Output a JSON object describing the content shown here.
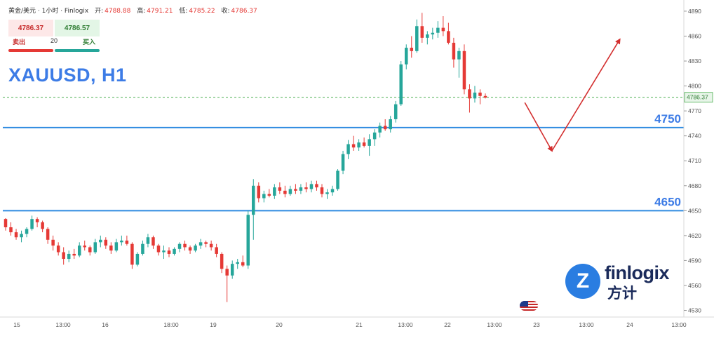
{
  "header": {
    "symbol_desc": "黄金/美元 · 1小时 · Finlogix",
    "open_label": "开:",
    "open": "4788.88",
    "high_label": "高:",
    "high": "4791.21",
    "low_label": "低:",
    "low": "4785.22",
    "close_label": "收:",
    "close": "4786.37"
  },
  "trade": {
    "sell_price": "4786.37",
    "buy_price": "4786.57",
    "sell_label": "卖出",
    "buy_label": "买入",
    "quantity": "20"
  },
  "symbol_title": "XAUUSD, H1",
  "logo": {
    "text": "finlogix",
    "chinese": "方计",
    "mark": "Z"
  },
  "colors": {
    "up": "#26a69a",
    "down": "#e53935",
    "level": "#2f8be0",
    "arrow": "#d32f2f",
    "label": "#3d7ce6"
  },
  "chart_data": {
    "type": "candlestick",
    "y_ticks": [
      4530,
      4560,
      4590,
      4620,
      4650,
      4680,
      4710,
      4740,
      4770,
      4800,
      4830,
      4860,
      4890
    ],
    "x_ticks": [
      "15",
      "13:00",
      "16",
      "18:00",
      "19",
      "20",
      "21",
      "13:00",
      "22",
      "13:00",
      "23",
      "13:00",
      "24",
      "13:00"
    ],
    "last_price": 4786.37,
    "last_price_label": "4786.37",
    "levels": [
      {
        "value": 4750,
        "label": "4750"
      },
      {
        "value": 4650,
        "label": "4650"
      }
    ],
    "projection": [
      {
        "x": 0.735,
        "price": 4780
      },
      {
        "x": 0.773,
        "price": 4722
      },
      {
        "x": 0.868,
        "price": 4856
      }
    ],
    "candles": [
      [
        4640,
        4641,
        4626,
        4630
      ],
      [
        4630,
        4636,
        4620,
        4624
      ],
      [
        4624,
        4628,
        4615,
        4618
      ],
      [
        4618,
        4626,
        4612,
        4622
      ],
      [
        4622,
        4630,
        4618,
        4628
      ],
      [
        4628,
        4644,
        4626,
        4640
      ],
      [
        4640,
        4642,
        4630,
        4636
      ],
      [
        4636,
        4638,
        4624,
        4628
      ],
      [
        4628,
        4630,
        4610,
        4615
      ],
      [
        4615,
        4620,
        4602,
        4608
      ],
      [
        4608,
        4612,
        4596,
        4600
      ],
      [
        4600,
        4606,
        4585,
        4592
      ],
      [
        4592,
        4602,
        4588,
        4598
      ],
      [
        4598,
        4604,
        4592,
        4596
      ],
      [
        4596,
        4612,
        4594,
        4608
      ],
      [
        4608,
        4614,
        4602,
        4606
      ],
      [
        4606,
        4608,
        4596,
        4600
      ],
      [
        4600,
        4616,
        4598,
        4612
      ],
      [
        4612,
        4620,
        4606,
        4615
      ],
      [
        4615,
        4618,
        4604,
        4608
      ],
      [
        4608,
        4612,
        4598,
        4602
      ],
      [
        4602,
        4616,
        4600,
        4612
      ],
      [
        4612,
        4620,
        4608,
        4614
      ],
      [
        4614,
        4620,
        4608,
        4610
      ],
      [
        4610,
        4612,
        4580,
        4585
      ],
      [
        4585,
        4600,
        4583,
        4598
      ],
      [
        4598,
        4614,
        4596,
        4610
      ],
      [
        4610,
        4622,
        4606,
        4618
      ],
      [
        4618,
        4620,
        4604,
        4608
      ],
      [
        4608,
        4610,
        4596,
        4600
      ],
      [
        4600,
        4608,
        4592,
        4602
      ],
      [
        4602,
        4606,
        4594,
        4598
      ],
      [
        4598,
        4606,
        4596,
        4604
      ],
      [
        4604,
        4612,
        4600,
        4610
      ],
      [
        4610,
        4614,
        4602,
        4606
      ],
      [
        4606,
        4608,
        4598,
        4602
      ],
      [
        4602,
        4610,
        4600,
        4608
      ],
      [
        4608,
        4616,
        4604,
        4612
      ],
      [
        4612,
        4614,
        4606,
        4610
      ],
      [
        4610,
        4614,
        4602,
        4606
      ],
      [
        4606,
        4610,
        4594,
        4598
      ],
      [
        4598,
        4600,
        4575,
        4580
      ],
      [
        4580,
        4584,
        4540,
        4572
      ],
      [
        4572,
        4590,
        4568,
        4586
      ],
      [
        4586,
        4592,
        4580,
        4588
      ],
      [
        4588,
        4596,
        4582,
        4584
      ],
      [
        4584,
        4650,
        4580,
        4645
      ],
      [
        4645,
        4688,
        4615,
        4680
      ],
      [
        4680,
        4684,
        4660,
        4665
      ],
      [
        4665,
        4674,
        4660,
        4670
      ],
      [
        4670,
        4676,
        4666,
        4668
      ],
      [
        4668,
        4682,
        4664,
        4678
      ],
      [
        4678,
        4684,
        4670,
        4674
      ],
      [
        4674,
        4680,
        4666,
        4670
      ],
      [
        4670,
        4680,
        4668,
        4676
      ],
      [
        4676,
        4682,
        4670,
        4674
      ],
      [
        4674,
        4682,
        4670,
        4678
      ],
      [
        4678,
        4684,
        4672,
        4676
      ],
      [
        4676,
        4686,
        4672,
        4682
      ],
      [
        4682,
        4686,
        4674,
        4678
      ],
      [
        4678,
        4682,
        4666,
        4670
      ],
      [
        4670,
        4676,
        4664,
        4672
      ],
      [
        4672,
        4680,
        4668,
        4676
      ],
      [
        4676,
        4700,
        4674,
        4698
      ],
      [
        4698,
        4722,
        4694,
        4718
      ],
      [
        4718,
        4735,
        4712,
        4730
      ],
      [
        4730,
        4740,
        4722,
        4726
      ],
      [
        4726,
        4736,
        4722,
        4732
      ],
      [
        4732,
        4738,
        4726,
        4728
      ],
      [
        4728,
        4742,
        4716,
        4736
      ],
      [
        4736,
        4748,
        4728,
        4744
      ],
      [
        4744,
        4756,
        4738,
        4752
      ],
      [
        4752,
        4760,
        4746,
        4748
      ],
      [
        4748,
        4764,
        4744,
        4760
      ],
      [
        4760,
        4782,
        4756,
        4778
      ],
      [
        4778,
        4830,
        4776,
        4826
      ],
      [
        4826,
        4850,
        4820,
        4846
      ],
      [
        4846,
        4860,
        4834,
        4842
      ],
      [
        4842,
        4880,
        4840,
        4872
      ],
      [
        4872,
        4888,
        4852,
        4858
      ],
      [
        4858,
        4866,
        4850,
        4862
      ],
      [
        4862,
        4870,
        4856,
        4864
      ],
      [
        4864,
        4878,
        4858,
        4870
      ],
      [
        4870,
        4884,
        4860,
        4866
      ],
      [
        4866,
        4876,
        4850,
        4852
      ],
      [
        4852,
        4858,
        4822,
        4832
      ],
      [
        4832,
        4846,
        4810,
        4842
      ],
      [
        4842,
        4850,
        4790,
        4796
      ],
      [
        4796,
        4802,
        4768,
        4785
      ],
      [
        4785,
        4800,
        4780,
        4792
      ],
      [
        4792,
        4796,
        4778,
        4788
      ],
      [
        4788,
        4791,
        4785,
        4786
      ]
    ]
  }
}
